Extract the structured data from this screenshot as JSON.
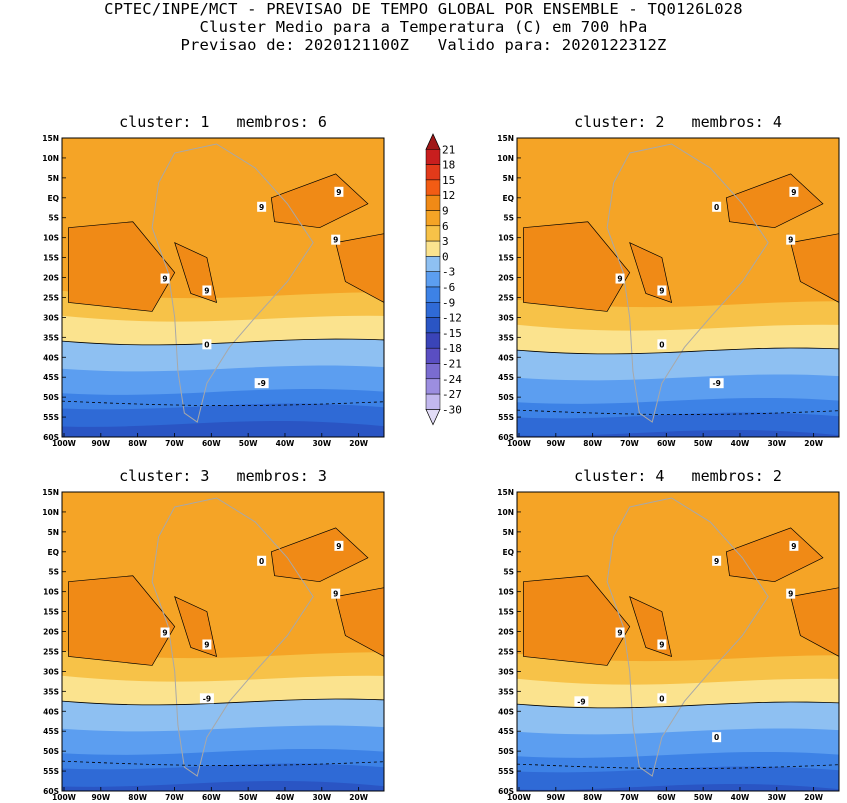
{
  "header": {
    "line1": "CPTEC/INPE/MCT - PREVISAO DE TEMPO GLOBAL POR ENSEMBLE - TQ0126L028",
    "line2": "Cluster Medio para a Temperatura (C) em 700 hPa",
    "line3": "Previsao de: 2020121100Z   Valido para: 2020122312Z"
  },
  "colorbar": {
    "levels": [
      "21",
      "18",
      "15",
      "12",
      "9",
      "6",
      "3",
      "0",
      "-3",
      "-6",
      "-9",
      "-12",
      "-15",
      "-18",
      "-21",
      "-24",
      "-27",
      "-30"
    ],
    "colors": [
      "#a01818",
      "#c81e1e",
      "#e23a1a",
      "#f25c14",
      "#f08a16",
      "#f5a426",
      "#f7c248",
      "#fbe38e",
      "#8ec0f2",
      "#5c9ef0",
      "#3d82e6",
      "#2f6ad6",
      "#2a55c4",
      "#3a44b8",
      "#5a4ec2",
      "#7a6cd0",
      "#9c8ee0",
      "#c2b8ee",
      "#e2dcf6"
    ]
  },
  "axes": {
    "x_ticks": [
      "100W",
      "90W",
      "80W",
      "70W",
      "60W",
      "50W",
      "40W",
      "30W",
      "20W"
    ],
    "y_ticks": [
      "15N",
      "10N",
      "5N",
      "EQ",
      "5S",
      "10S",
      "15S",
      "20S",
      "25S",
      "30S",
      "35S",
      "40S",
      "45S",
      "50S",
      "55S",
      "60S"
    ]
  },
  "chart_data": [
    {
      "type": "contour-map",
      "title": "cluster: 1   membros: 6",
      "variable": "Temperature (C) at 700 hPa",
      "contour_labels": [
        "9",
        "9",
        "9",
        "9",
        "9",
        "0",
        "-9"
      ],
      "lon_range": [
        -100,
        -10
      ],
      "lat_range": [
        -60,
        15
      ]
    },
    {
      "type": "contour-map",
      "title": "cluster: 2   membros: 4",
      "variable": "Temperature (C) at 700 hPa",
      "contour_labels": [
        "9",
        "9",
        "9",
        "9",
        "0",
        "0",
        "-9"
      ],
      "lon_range": [
        -100,
        -10
      ],
      "lat_range": [
        -60,
        15
      ]
    },
    {
      "type": "contour-map",
      "title": "cluster: 3   membros: 3",
      "variable": "Temperature (C) at 700 hPa",
      "contour_labels": [
        "9",
        "9",
        "9",
        "9",
        "0",
        "-9"
      ],
      "lon_range": [
        -100,
        -10
      ],
      "lat_range": [
        -60,
        15
      ]
    },
    {
      "type": "contour-map",
      "title": "cluster: 4   membros: 2",
      "variable": "Temperature (C) at 700 hPa",
      "contour_labels": [
        "9",
        "9",
        "9",
        "9",
        "9",
        "0",
        "0",
        "-9"
      ],
      "lon_range": [
        -100,
        -10
      ],
      "lat_range": [
        -60,
        15
      ]
    }
  ]
}
